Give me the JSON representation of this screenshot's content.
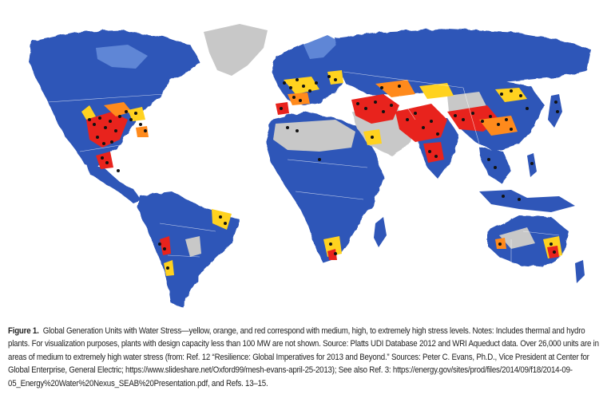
{
  "figure": {
    "label": "Figure 1.",
    "caption_text": "Global Generation Units with Water Stress—yellow, orange, and red correspond with medium, high, to extremely high stress levels. Notes: Includes thermal and hydro plants. For visualization purposes, plants with design capacity less than 100 MW are not shown. Source: Platts UDI Database 2012 and WRI Aqueduct data. Over 26,000 units are in areas of medium to extremely high water stress (from: Ref. 12 “Resilience: Global Imperatives for 2013 and Beyond.” Sources: Peter C. Evans, Ph.D., Vice President at Center for Global Enterprise, General Electric; https://www.slideshare.net/Oxford99/mesh-evans-april-25-2013); See also Ref. 3: https://energy.gov/sites/prod/files/2014/09/f18/2014-09-05_Energy%20Water%20Nexus_SEAB%20Presentation.pdf, and Refs. 13–15."
  },
  "map": {
    "colors": {
      "low_stress": "#2f56b8",
      "low_stress_light": "#5f86d6",
      "medium_stress": "#ffd21f",
      "high_stress": "#ff8a1c",
      "extremely_high_stress": "#e8231d",
      "no_data": "#c8c8c8",
      "plant_marker": "#111111",
      "ocean": "#ffffff"
    },
    "stress_levels": [
      "medium",
      "high",
      "extremely high"
    ]
  }
}
